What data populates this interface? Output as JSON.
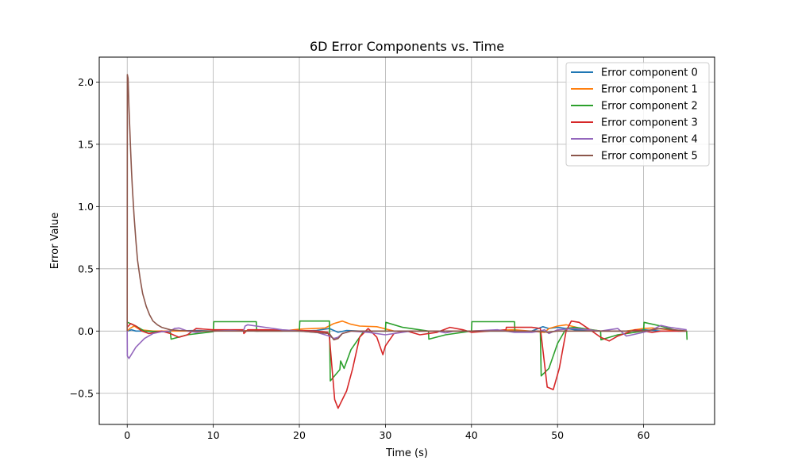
{
  "chart_data": {
    "type": "line",
    "title": "6D Error Components vs. Time",
    "xlabel": "Time (s)",
    "ylabel": "Error Value",
    "xlim": [
      -3.25,
      68.25
    ],
    "ylim": [
      -0.75,
      2.2
    ],
    "xticks": [
      0,
      10,
      20,
      30,
      40,
      50,
      60
    ],
    "yticks": [
      -0.5,
      0.0,
      0.5,
      1.0,
      1.5,
      2.0
    ],
    "xtick_labels": [
      "0",
      "10",
      "20",
      "30",
      "40",
      "50",
      "60"
    ],
    "ytick_labels": [
      "−0.5",
      "0.0",
      "0.5",
      "1.0",
      "1.5",
      "2.0"
    ],
    "grid": true,
    "legend_position": "top-right",
    "series": [
      {
        "name": "Error component 0",
        "color": "#1f77b4",
        "x": [
          0,
          0.5,
          1,
          2,
          3,
          5,
          8,
          10,
          13,
          15,
          18,
          20,
          22,
          23.5,
          24.5,
          25.5,
          27,
          30,
          32,
          35,
          37,
          40,
          44,
          47,
          48.3,
          49,
          50,
          52,
          55,
          58,
          60,
          62,
          65
        ],
        "y": [
          0.0,
          0.01,
          0.0,
          0.0,
          -0.005,
          0.0,
          0.005,
          0.0,
          0.005,
          0.0,
          0.0,
          0.0,
          0.005,
          0.02,
          -0.01,
          0.005,
          0.0,
          0.0,
          0.0,
          0.0,
          0.0,
          0.0,
          0.0,
          0.0,
          0.035,
          0.02,
          0.03,
          0.01,
          0.0,
          0.0,
          0.01,
          0.0,
          0.0
        ]
      },
      {
        "name": "Error component 1",
        "color": "#ff7f0e",
        "x": [
          0,
          0.3,
          0.8,
          1.5,
          3,
          5,
          8,
          10,
          13,
          15,
          18,
          20,
          23,
          24,
          25,
          26,
          27,
          29,
          31,
          35,
          40,
          45,
          48.5,
          49,
          50,
          51,
          52.5,
          55,
          58,
          60,
          61,
          63,
          65
        ],
        "y": [
          0.0,
          0.02,
          0.04,
          0.01,
          0.0,
          0.0,
          0.0,
          0.0,
          0.005,
          0.0,
          0.0,
          0.015,
          0.025,
          0.06,
          0.08,
          0.055,
          0.04,
          0.035,
          0.0,
          0.0,
          0.0,
          0.01,
          -0.01,
          0.02,
          0.04,
          0.05,
          0.025,
          0.0,
          0.0,
          0.02,
          0.025,
          0.01,
          0.0
        ]
      },
      {
        "name": "Error component 2",
        "color": "#2ca02c",
        "x": [
          0,
          0.05,
          1,
          2,
          4,
          5,
          5.1,
          7,
          10,
          10.05,
          15,
          15.05,
          17,
          20,
          20.05,
          23.5,
          23.6,
          24.7,
          24.8,
          25.2,
          26,
          27.5,
          29,
          30,
          30.05,
          32,
          35,
          35.05,
          37,
          40,
          40.05,
          45,
          45.05,
          47,
          48,
          48.1,
          49,
          50,
          51,
          52,
          55,
          55.05,
          57,
          60,
          60.05,
          62,
          64,
          65,
          65.05
        ],
        "y": [
          0.07,
          0.07,
          0.04,
          0.0,
          -0.005,
          -0.005,
          -0.065,
          -0.03,
          -0.005,
          0.075,
          0.075,
          0.0,
          0.005,
          0.0,
          0.08,
          0.08,
          -0.4,
          -0.31,
          -0.24,
          -0.3,
          -0.15,
          0.0,
          0.0,
          0.0,
          0.07,
          0.03,
          0.0,
          -0.065,
          -0.03,
          0.0,
          0.075,
          0.075,
          0.0,
          0.0,
          0.0,
          -0.36,
          -0.3,
          -0.1,
          0.02,
          0.03,
          0.0,
          -0.07,
          -0.03,
          0.0,
          0.07,
          0.04,
          0.0,
          0.0,
          -0.07
        ]
      },
      {
        "name": "Error component 3",
        "color": "#d62728",
        "x": [
          0,
          0.4,
          1,
          1.7,
          2.5,
          3.3,
          4,
          5,
          6,
          7,
          8,
          10,
          13.5,
          13.55,
          14,
          16,
          20,
          22,
          23.3,
          23.5,
          24.1,
          24.5,
          25,
          25.5,
          26.2,
          27,
          28,
          29,
          29.7,
          30,
          31,
          32.5,
          34,
          36,
          37.5,
          39,
          40,
          42,
          44,
          44.05,
          47,
          48,
          48.05,
          48.8,
          49.5,
          50.2,
          51,
          51.6,
          52.5,
          54,
          55,
          56,
          57,
          59,
          60,
          61,
          62,
          63,
          65
        ],
        "y": [
          0.03,
          0.06,
          0.04,
          0.0,
          -0.02,
          -0.01,
          0.0,
          -0.02,
          -0.05,
          -0.03,
          0.02,
          0.01,
          0.01,
          -0.02,
          0.01,
          0.01,
          0.005,
          0.0,
          -0.01,
          -0.05,
          -0.55,
          -0.62,
          -0.55,
          -0.48,
          -0.3,
          -0.05,
          0.02,
          -0.05,
          -0.19,
          -0.12,
          -0.02,
          0.0,
          -0.03,
          -0.01,
          0.03,
          0.01,
          -0.01,
          0.0,
          0.01,
          0.03,
          0.03,
          0.02,
          0.0,
          -0.45,
          -0.47,
          -0.3,
          0.0,
          0.08,
          0.07,
          0.0,
          -0.05,
          -0.08,
          -0.04,
          0.01,
          0.0,
          -0.01,
          0.0,
          0.0,
          0.0
        ]
      },
      {
        "name": "Error component 4",
        "color": "#9467bd",
        "x": [
          0,
          0.02,
          0.2,
          1,
          2,
          3,
          4,
          5,
          5.5,
          6,
          7,
          8,
          9,
          10,
          12,
          13.5,
          13.7,
          14,
          15,
          18,
          20,
          22,
          23.5,
          24,
          24.5,
          25,
          26,
          28,
          30,
          33,
          36,
          37,
          38,
          40,
          43,
          45,
          47,
          48,
          48.5,
          49,
          50,
          52,
          55,
          57,
          58,
          60,
          61,
          62,
          63,
          65
        ],
        "y": [
          0.0,
          -0.2,
          -0.22,
          -0.13,
          -0.06,
          -0.02,
          -0.005,
          0.0,
          0.02,
          0.025,
          0.0,
          -0.01,
          0.0,
          0.0,
          0.005,
          0.0,
          0.04,
          0.05,
          0.04,
          0.01,
          0.0,
          -0.01,
          -0.04,
          -0.06,
          -0.05,
          -0.02,
          0.0,
          -0.01,
          -0.03,
          0.0,
          0.0,
          -0.015,
          0.0,
          0.0,
          0.01,
          -0.01,
          -0.01,
          0.0,
          0.01,
          -0.02,
          0.01,
          0.02,
          0.0,
          0.02,
          -0.04,
          -0.01,
          0.01,
          0.045,
          0.03,
          0.01
        ]
      },
      {
        "name": "Error component 5",
        "color": "#8c564b",
        "x": [
          0,
          0.02,
          0.1,
          0.2,
          0.3,
          0.4,
          0.5,
          0.6,
          0.8,
          1.0,
          1.2,
          1.5,
          1.8,
          2.2,
          2.6,
          3.0,
          3.5,
          4.0,
          5,
          6,
          8,
          10,
          15,
          20,
          23.5,
          24,
          24.5,
          25,
          26,
          30,
          40,
          48,
          48.8,
          50,
          55,
          60,
          62,
          65
        ],
        "y": [
          0.0,
          2.06,
          2.03,
          1.8,
          1.62,
          1.44,
          1.29,
          1.15,
          0.92,
          0.73,
          0.57,
          0.42,
          0.3,
          0.2,
          0.13,
          0.08,
          0.05,
          0.03,
          0.01,
          0.005,
          0.0,
          0.0,
          0.0,
          0.0,
          -0.02,
          -0.07,
          -0.06,
          -0.02,
          0.0,
          0.0,
          0.0,
          0.0,
          -0.01,
          0.0,
          0.0,
          0.0,
          0.02,
          0.0
        ]
      }
    ]
  }
}
